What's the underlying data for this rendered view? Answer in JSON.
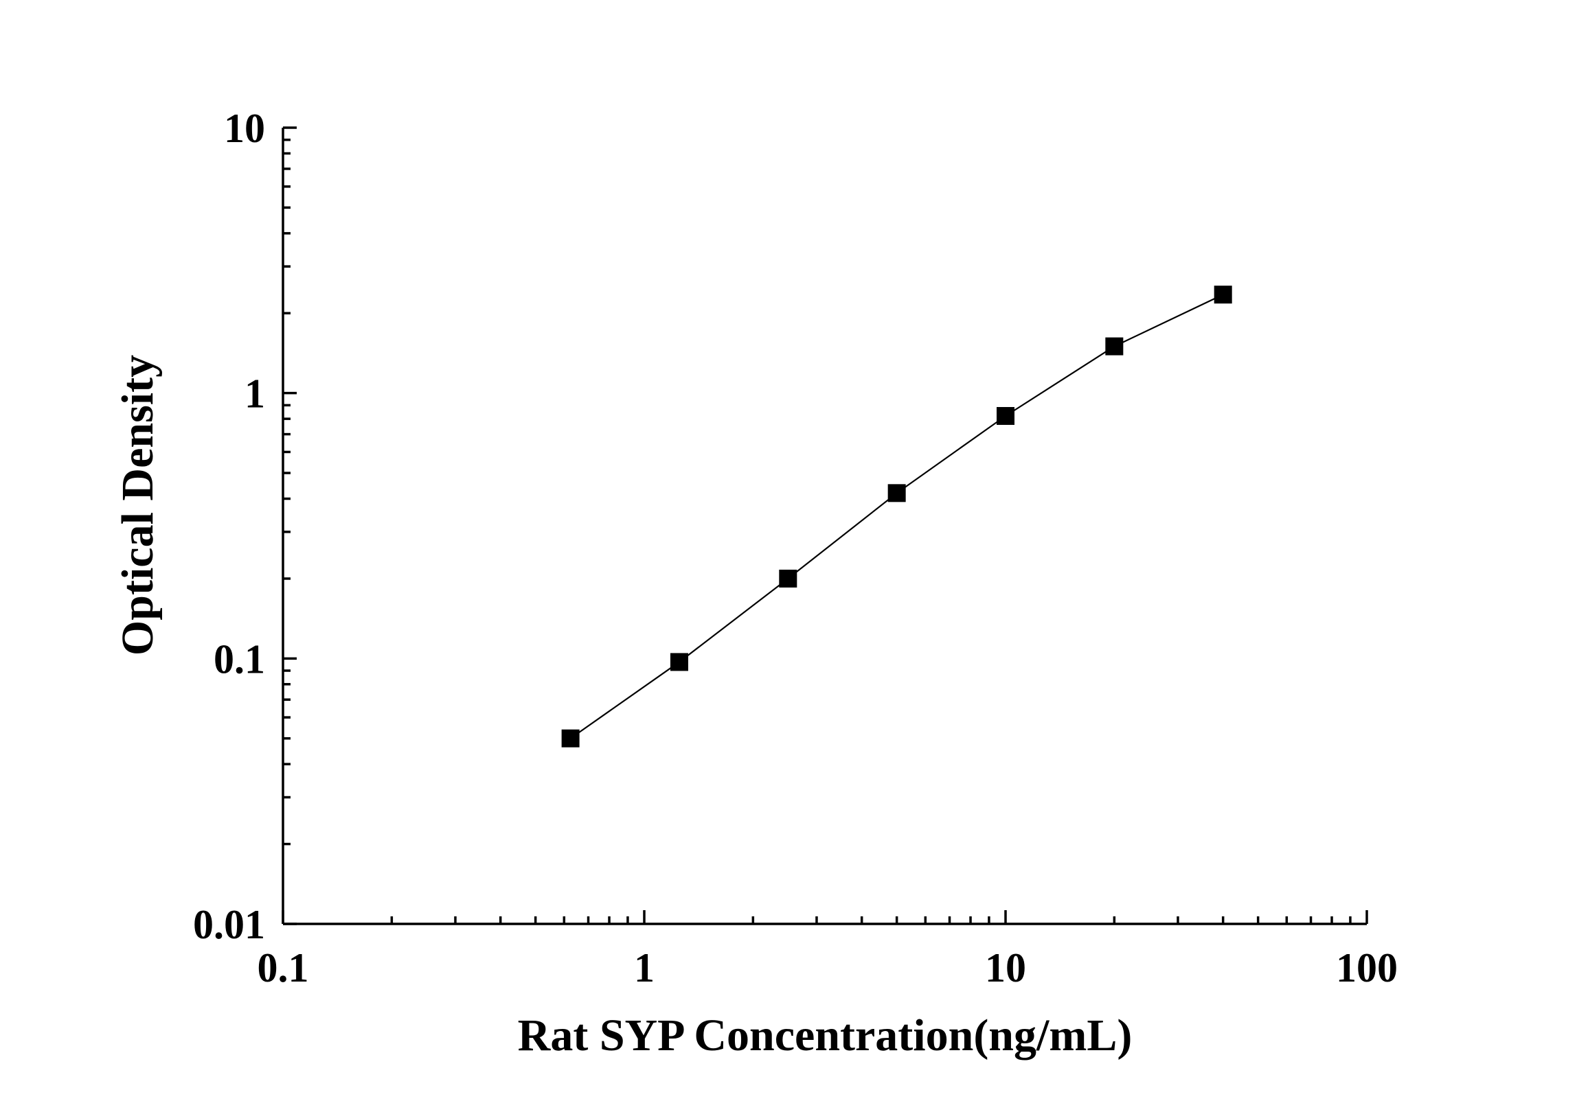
{
  "chart_data": {
    "type": "line",
    "title": "",
    "xlabel": "Rat SYP Concentration(ng/mL)",
    "ylabel": "Optical Density",
    "xscale": "log",
    "yscale": "log",
    "xlim": [
      0.1,
      100
    ],
    "ylim": [
      0.01,
      10
    ],
    "x_ticks": [
      {
        "value": 0.1,
        "label": "0.1"
      },
      {
        "value": 1,
        "label": "1"
      },
      {
        "value": 10,
        "label": "10"
      },
      {
        "value": 100,
        "label": "100"
      }
    ],
    "y_ticks": [
      {
        "value": 0.01,
        "label": "0.01"
      },
      {
        "value": 0.1,
        "label": "0.1"
      },
      {
        "value": 1,
        "label": "1"
      },
      {
        "value": 10,
        "label": "10"
      }
    ],
    "grid": false,
    "legend": "none",
    "marker": "square",
    "color": "#000000",
    "series": [
      {
        "x": [
          0.625,
          1.25,
          2.5,
          5,
          10,
          20,
          40
        ],
        "y": [
          0.05,
          0.097,
          0.2,
          0.42,
          0.82,
          1.5,
          2.35
        ]
      }
    ]
  }
}
